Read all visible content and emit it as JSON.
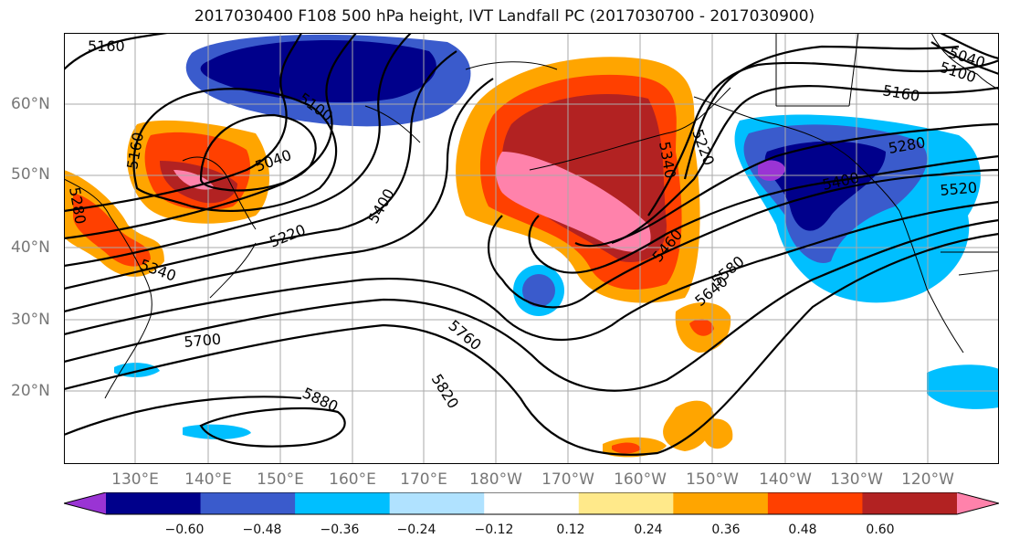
{
  "title": "2017030400 F108 500 hPa height, IVT Landfall PC (2017030700 - 2017030900)",
  "lat_labels": [
    "60°N",
    "50°N",
    "40°N",
    "30°N",
    "20°N"
  ],
  "lon_labels": [
    "130°E",
    "140°E",
    "150°E",
    "160°E",
    "170°E",
    "180°W",
    "170°W",
    "160°W",
    "150°W",
    "140°W",
    "130°W",
    "120°W"
  ],
  "contour_labels": [
    "5160",
    "5160",
    "5280",
    "5340",
    "5220",
    "5040",
    "5100",
    "5400",
    "5460",
    "5580",
    "5640",
    "5700",
    "5760",
    "5820",
    "5880",
    "5040",
    "5100",
    "5160",
    "5220",
    "5280",
    "5400",
    "5520",
    "5340"
  ],
  "colorbar": {
    "colors": [
      "#9a34d4",
      "#00008b",
      "#3a5bcc",
      "#00bfff",
      "#b0e2ff",
      "#ffffff",
      "#ffe98a",
      "#ffa500",
      "#ff4000",
      "#b22222",
      "#ff82ab"
    ],
    "tick_labels": [
      "−0.60",
      "−0.48",
      "−0.36",
      "−0.24",
      "−0.12",
      "0.12",
      "0.24",
      "0.36",
      "0.48",
      "0.60"
    ]
  }
}
